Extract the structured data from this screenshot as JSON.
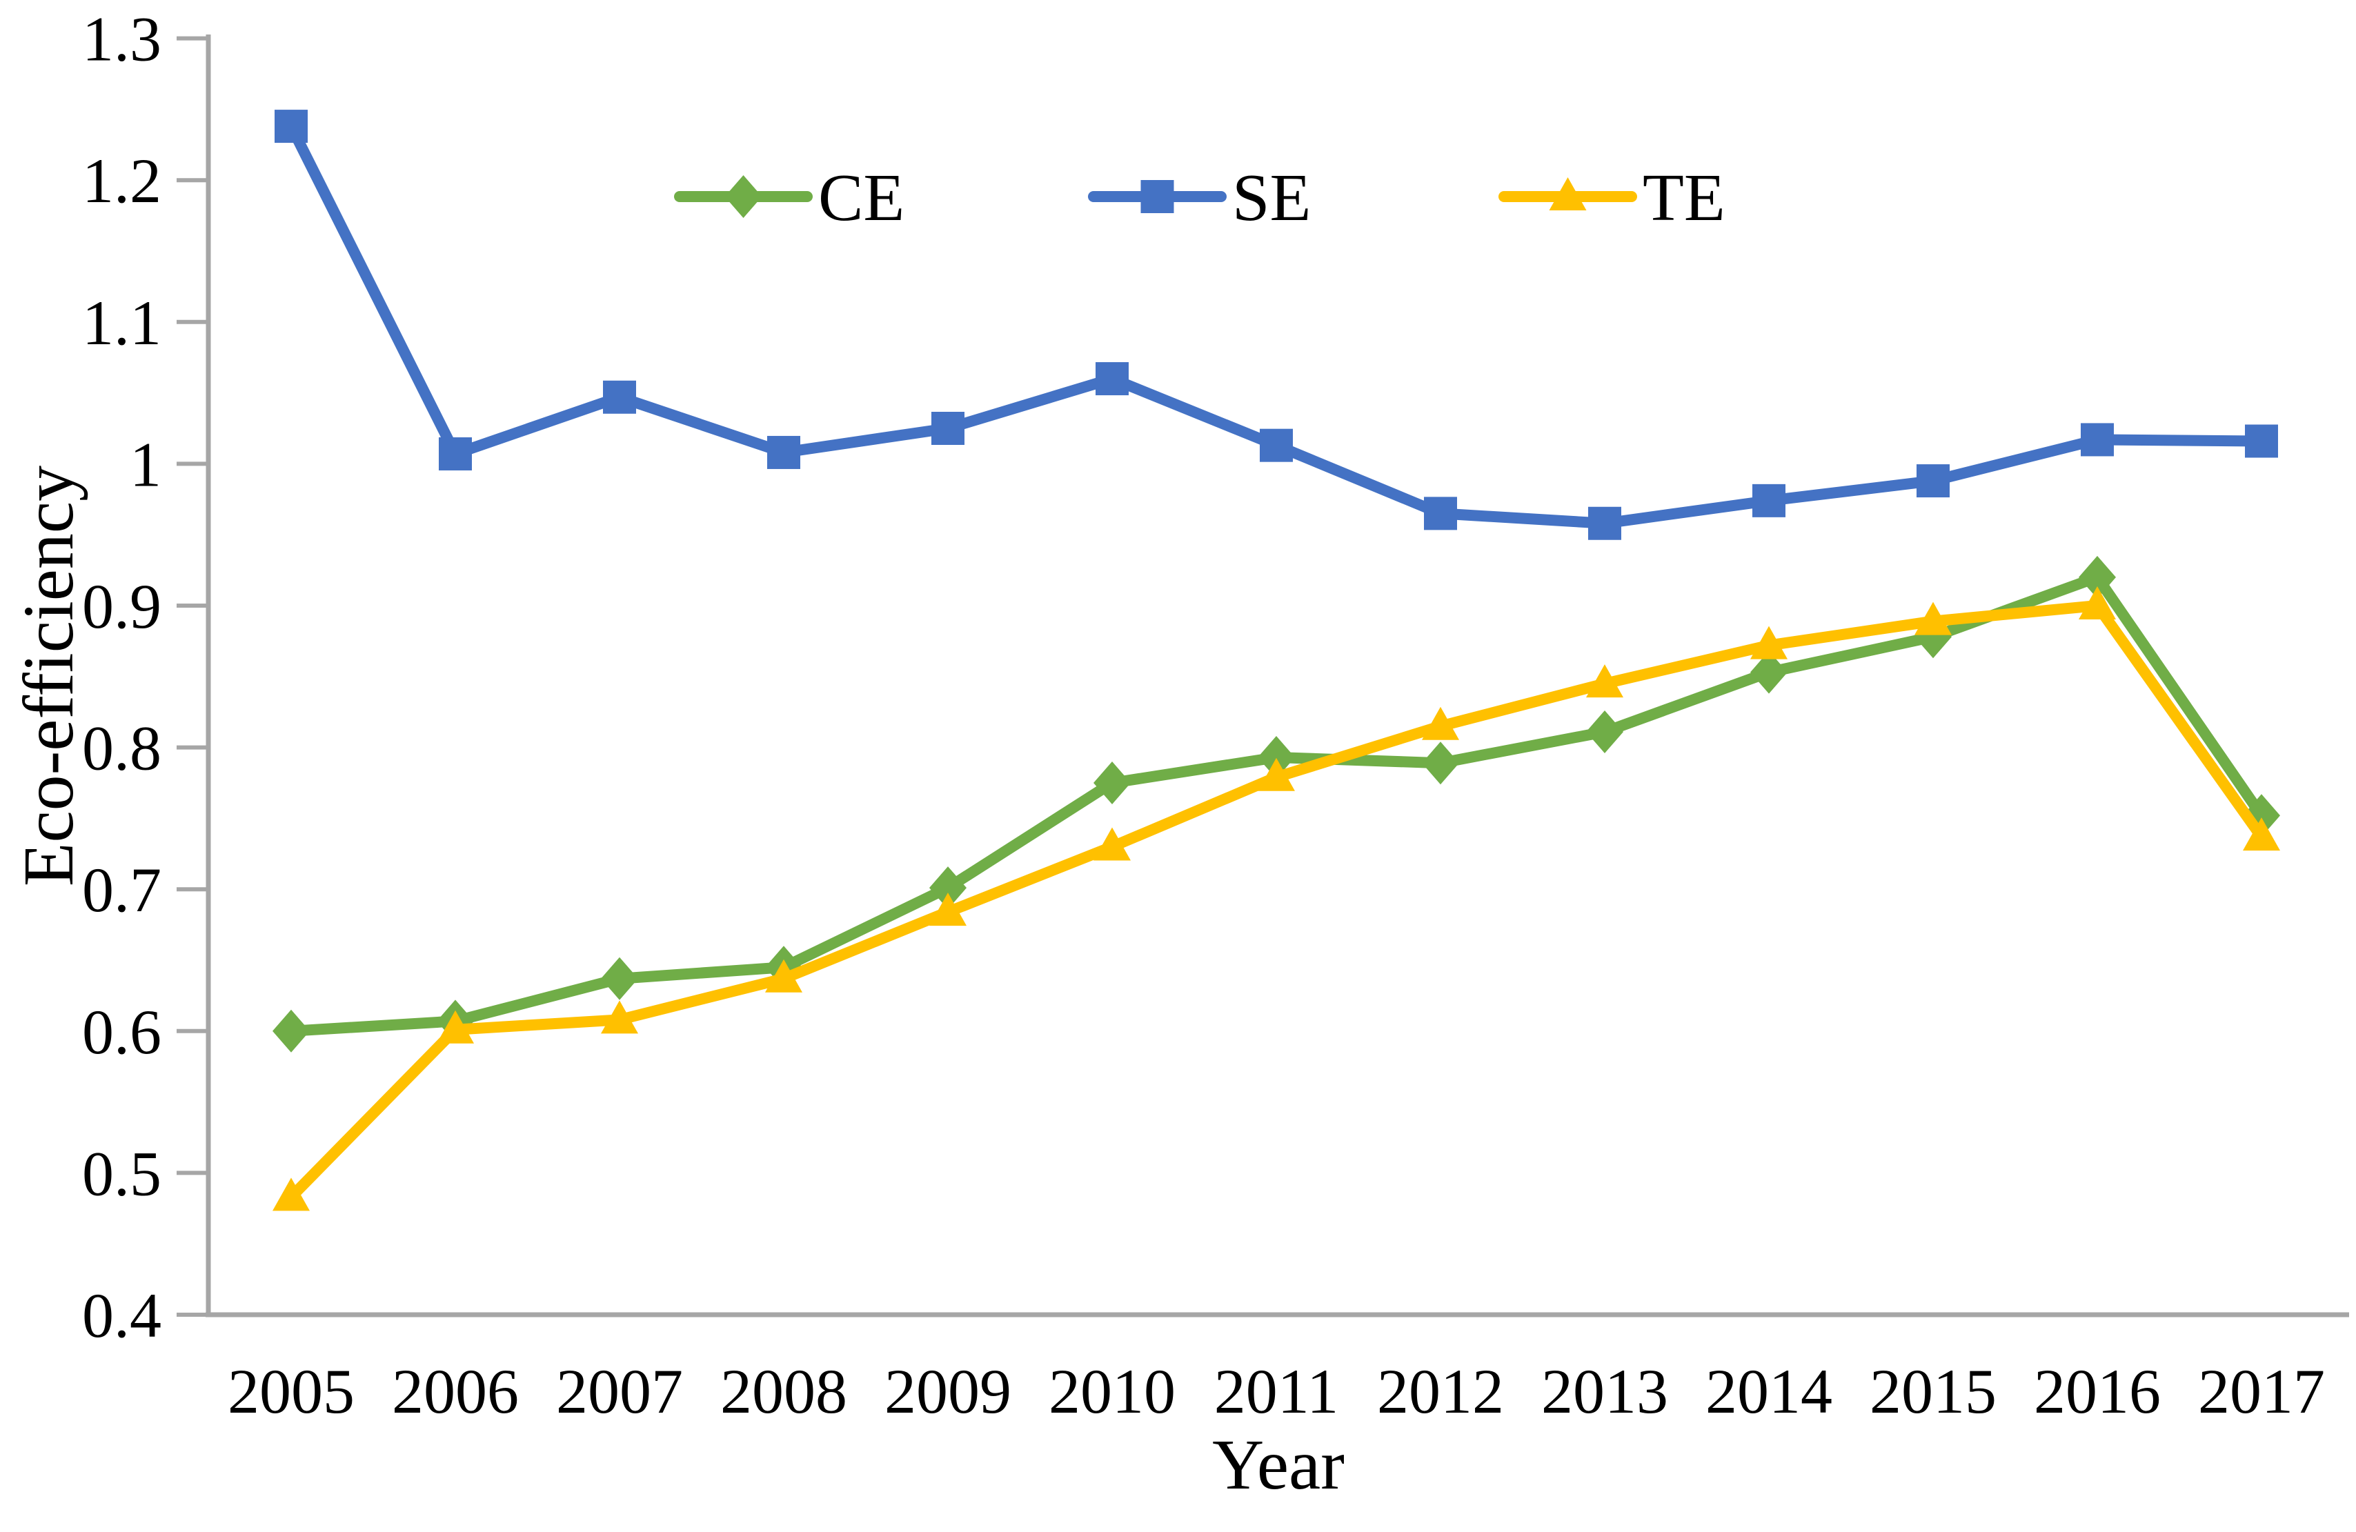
{
  "figure": {
    "kind": "line-chart-figure",
    "background": "#ffffff"
  },
  "chart_data": {
    "type": "line",
    "title": "",
    "xlabel": "Year",
    "ylabel": "Eco-efficiency",
    "x": [
      "2005",
      "2006",
      "2007",
      "2008",
      "2009",
      "2010",
      "2011",
      "2012",
      "2013",
      "2014",
      "2015",
      "2016",
      "2017"
    ],
    "series": [
      {
        "name": "CE",
        "color": "#70AD47",
        "marker": "diamond",
        "values": [
          0.6,
          0.607,
          0.637,
          0.645,
          0.701,
          0.775,
          0.793,
          0.789,
          0.811,
          0.853,
          0.878,
          0.92,
          0.752
        ]
      },
      {
        "name": "SE",
        "color": "#4472C4",
        "marker": "square",
        "values": [
          1.238,
          1.007,
          1.047,
          1.008,
          1.025,
          1.06,
          1.013,
          0.965,
          0.958,
          0.974,
          0.988,
          1.017,
          1.016
        ]
      },
      {
        "name": "TE",
        "color": "#FFC000",
        "marker": "triangle",
        "values": [
          0.483,
          0.601,
          0.608,
          0.637,
          0.684,
          0.73,
          0.779,
          0.815,
          0.845,
          0.872,
          0.889,
          0.9,
          0.737
        ]
      }
    ],
    "ylim": [
      0.4,
      1.3
    ],
    "yticks": [
      0.4,
      0.5,
      0.6,
      0.7,
      0.8,
      0.9,
      1.0,
      1.1,
      1.2,
      1.3
    ],
    "ytick_labels": [
      "0.4",
      "0.5",
      "0.6",
      "0.7",
      "0.8",
      "0.9",
      "1",
      "1.1",
      "1.2",
      "1.3"
    ],
    "grid": false,
    "legend_position": "top-center",
    "axis_color": "#A6A6A6",
    "text_color": "#000000",
    "line_width": 16
  }
}
